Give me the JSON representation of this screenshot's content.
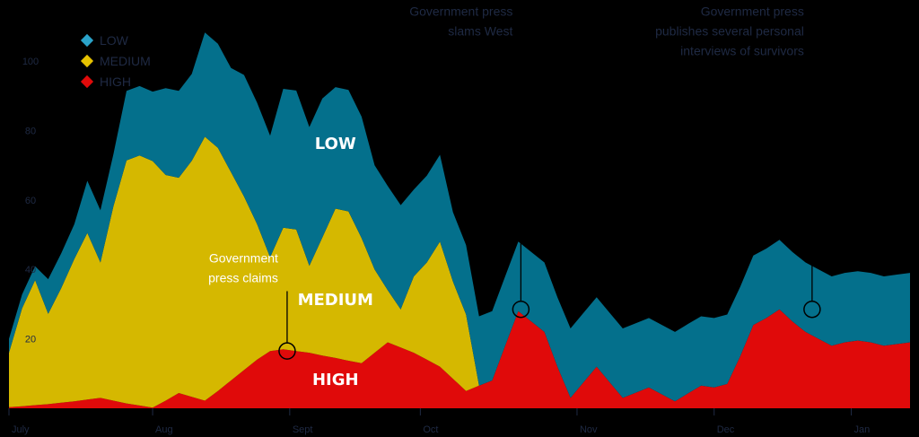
{
  "chart_data": {
    "type": "area",
    "stacked": true,
    "ylim": [
      0,
      115
    ],
    "yticks": [
      20,
      40,
      60,
      80,
      100
    ],
    "x_tick_labels": [
      "July",
      "Aug",
      "Sept",
      "Oct",
      "Nov",
      "Dec",
      "Jan"
    ],
    "x_tick_positions": [
      0,
      11,
      21.5,
      31.5,
      43.5,
      54,
      64.5
    ],
    "x": [
      0,
      1,
      2,
      3,
      4,
      5,
      6,
      7,
      8,
      9,
      10,
      11,
      12,
      13,
      14,
      15,
      16,
      17,
      18,
      19,
      20,
      21,
      22,
      23,
      24,
      25,
      26,
      27,
      28,
      29,
      30,
      31,
      32,
      33,
      34,
      35,
      36,
      37,
      38,
      39,
      40,
      41,
      42,
      43,
      44,
      45,
      46,
      47,
      48,
      49,
      50,
      51,
      52,
      53,
      54,
      55,
      56,
      57,
      58,
      59,
      60,
      61,
      62,
      63,
      64,
      65,
      66,
      67,
      68,
      69
    ],
    "series": [
      {
        "name": "HIGH",
        "color": "#e00a0a",
        "values": [
          0.3,
          0.6,
          0.9,
          1.2,
          1.6,
          2.0,
          2.5,
          3.0,
          2.2,
          1.4,
          0.8,
          0.2,
          2.2,
          4.4,
          3.3,
          2.2,
          5.0,
          8.0,
          11.0,
          14.0,
          16.5,
          17.0,
          16.5,
          16.0,
          15.2,
          14.5,
          13.7,
          13.0,
          16.0,
          19.0,
          17.5,
          16.0,
          14.0,
          12.0,
          8.5,
          5.0,
          6.5,
          8.0,
          18.0,
          28.0,
          25.0,
          22.0,
          12.0,
          3.0,
          7.5,
          12.0,
          7.5,
          3.0,
          4.5,
          6.0,
          4.0,
          2.0,
          4.3,
          6.5,
          6.0,
          7.0,
          15.0,
          24.0,
          26.0,
          28.5,
          25.0,
          22.0,
          20.0,
          18.0,
          19.0,
          19.5,
          19.0,
          18.0,
          18.5,
          19.0
        ]
      },
      {
        "name": "MEDIUM",
        "color": "#d5b800",
        "values": [
          15.7,
          28.2,
          36.0,
          26.0,
          33.0,
          41.0,
          48.0,
          39.0,
          56.0,
          70.0,
          72.0,
          71.0,
          65.0,
          62.0,
          68.0,
          76.0,
          70.0,
          60.0,
          50.0,
          39.0,
          27.0,
          35.0,
          35.0,
          25.0,
          34.0,
          43.0,
          43.0,
          36.0,
          24.0,
          15.0,
          11.0,
          22.0,
          28.0,
          36.0,
          28.0,
          22.0,
          0,
          0,
          0,
          0,
          0,
          0,
          0,
          0,
          0,
          0,
          0,
          0,
          0,
          0,
          0,
          0,
          0,
          0,
          0,
          0,
          0,
          0,
          0,
          0,
          0,
          0,
          0,
          0,
          0,
          0,
          0,
          0,
          0,
          0
        ]
      },
      {
        "name": "LOW",
        "color": "#04708c",
        "values": [
          4.0,
          4.0,
          4.0,
          10.0,
          10.0,
          10.0,
          15.0,
          15.0,
          15.0,
          20.0,
          20.0,
          20.0,
          25.0,
          25.0,
          25.0,
          30.0,
          30.0,
          30.0,
          35.0,
          35.0,
          35.0,
          40.0,
          40.0,
          40.0,
          40.0,
          35.0,
          35.0,
          35.0,
          30.0,
          30.0,
          30.0,
          25.0,
          25.0,
          25.0,
          20.0,
          20.0,
          20.0,
          20.0,
          20.0,
          20.0,
          20.0,
          20.0,
          20.0,
          20.0,
          20.0,
          20.0,
          20.0,
          20.0,
          20.0,
          20.0,
          20.0,
          20.0,
          20.0,
          20.0,
          20.0,
          20.0,
          20.0,
          20.0,
          20.0,
          20.0,
          20.0,
          20.0,
          20.0,
          20.0,
          20.0,
          20.0,
          20.0,
          20.0,
          20.0,
          20.0
        ]
      }
    ],
    "area_labels": [
      {
        "series": "LOW",
        "text": "LOW",
        "x": 25,
        "y": 76
      },
      {
        "series": "MEDIUM",
        "text": "MEDIUM",
        "x": 25,
        "y": 31
      },
      {
        "series": "HIGH",
        "text": "HIGH",
        "x": 25,
        "y": 8
      }
    ],
    "annotations": [
      {
        "lines": [
          "Government",
          "press claims"
        ],
        "x": 21.3,
        "y": 16.5,
        "text_y": 42,
        "align": "end",
        "text_color": "#ffffff",
        "line_color": "#000000"
      },
      {
        "lines": [
          "Government press",
          "slams West"
        ],
        "x": 39.2,
        "y": 28.5,
        "text_y": 113,
        "align": "end",
        "text_color": "#1f2a44",
        "line_color": "#000000"
      },
      {
        "lines": [
          "Government press",
          "publishes several personal",
          "interviews of survivors"
        ],
        "x": 61.5,
        "y": 28.5,
        "text_y": 113,
        "align": "end",
        "text_color": "#1f2a44",
        "line_color": "#000000"
      }
    ],
    "legend": {
      "placement": "top-left",
      "items": [
        {
          "label": "LOW",
          "color": "#2ba3c9"
        },
        {
          "label": "MEDIUM",
          "color": "#e6c200"
        },
        {
          "label": "HIGH",
          "color": "#e00a0a"
        }
      ]
    }
  }
}
